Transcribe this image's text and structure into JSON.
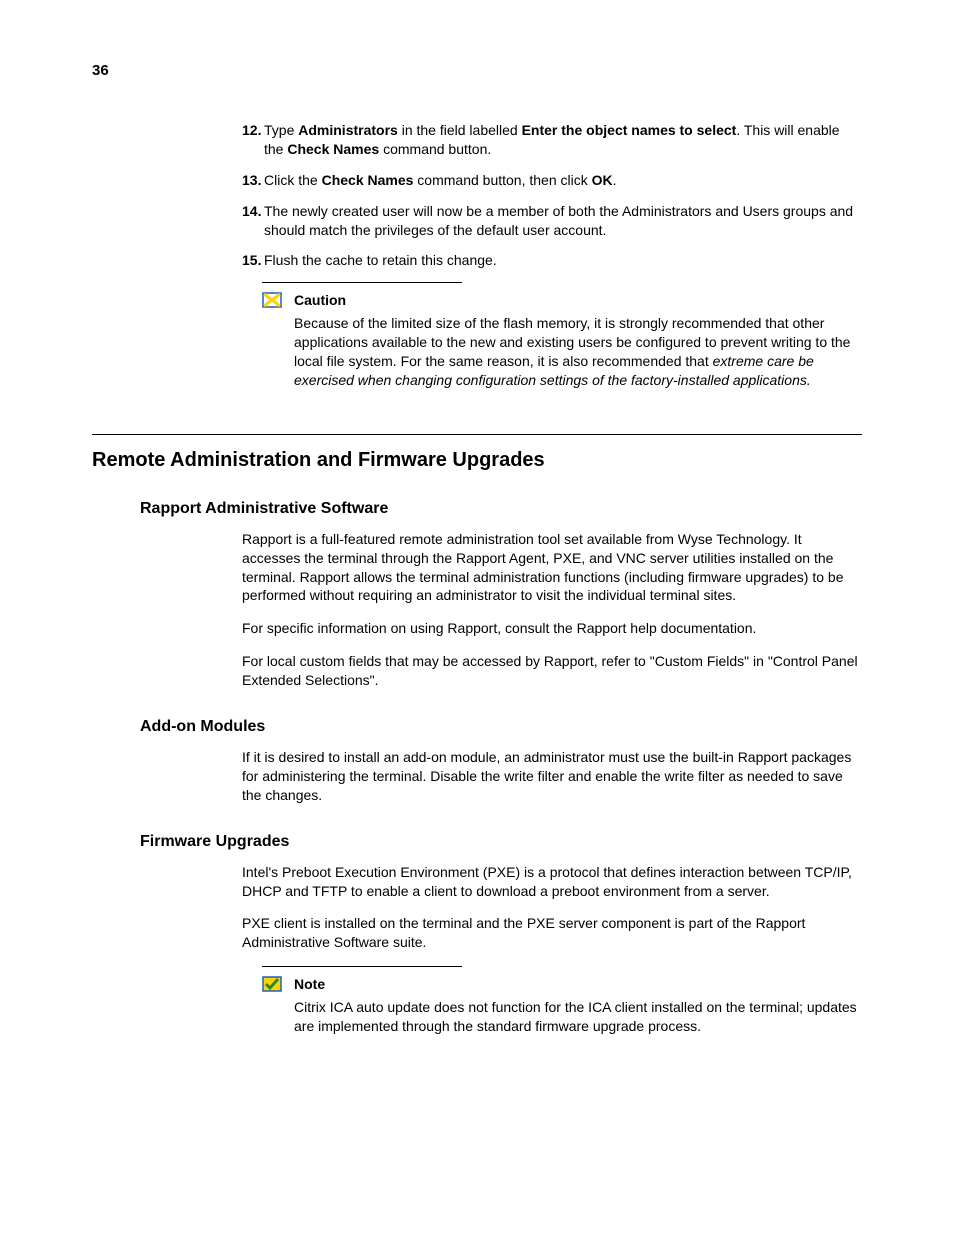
{
  "page_number": "36",
  "steps": [
    {
      "num": "12.",
      "html": "Type <b>Administrators</b> in the field labelled <b>Enter the object names to select</b>. This will enable the <b>Check Names</b> command button."
    },
    {
      "num": "13.",
      "html": "Click the <b>Check Names</b> command button, then click <b>OK</b>."
    },
    {
      "num": "14.",
      "html": "The newly created user will now be a member of both the Administrators and Users groups and should match the privileges of the default user account."
    },
    {
      "num": "15.",
      "html": "Flush the cache to retain this change."
    }
  ],
  "caution": {
    "title": "Caution",
    "html": "Because of the limited size of the flash memory, it is strongly recommended that other applications available to the new and existing users be configured to prevent writing to the local file system. For the same reason, it is also recommended that <i>extreme care be exercised when changing configuration settings of the factory-installed applications.</i>",
    "icon_border": "#1f5fbf",
    "icon_fill": "#ffd400"
  },
  "section_title": "Remote Administration and Firmware Upgrades",
  "subsections": [
    {
      "title": "Rapport Administrative Software",
      "paragraphs": [
        "Rapport is a full-featured remote administration tool set available from Wyse Technology. It accesses the terminal through the Rapport Agent, PXE, and VNC server utilities installed on the terminal. Rapport allows the terminal administration functions (including firmware upgrades) to be performed without requiring an administrator to visit the individual terminal sites.",
        "For specific information on using Rapport, consult the Rapport help documentation.",
        "For local custom fields that may be accessed by Rapport, refer to \"Custom Fields\" in \"Control Panel Extended Selections\"."
      ]
    },
    {
      "title": "Add-on Modules",
      "paragraphs": [
        "If it is desired to install an add-on module, an administrator must use the built-in Rapport packages for administering the terminal. Disable the write filter and enable the write filter as needed to save the changes."
      ]
    },
    {
      "title": "Firmware Upgrades",
      "paragraphs": [
        "Intel's Preboot Execution Environment (PXE) is a protocol that defines interaction between TCP/IP, DHCP and TFTP to enable a client to download a preboot environment from a server.",
        "PXE client is installed on the terminal and the PXE server component is part of the Rapport Administrative Software suite."
      ]
    }
  ],
  "note": {
    "title": "Note",
    "html": "Citrix ICA auto update does not function for the ICA client installed on the terminal; updates are implemented through the standard firmware upgrade process.",
    "icon_border": "#1f5fbf",
    "icon_check": "#2a8a2a",
    "icon_fill": "#ffd400"
  }
}
